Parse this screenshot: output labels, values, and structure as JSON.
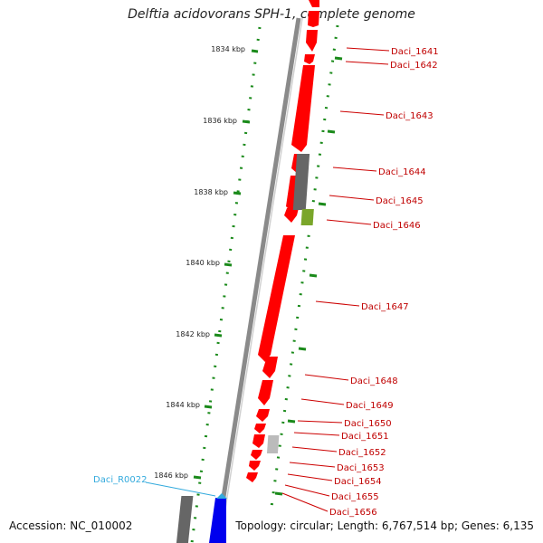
{
  "title": "Delftia acidovorans SPH-1, complete genome",
  "footer": {
    "accession": "Accession: NC_010002",
    "topology": "Topology: circular; Length: 6,767,514 bp; Genes: 6,135"
  },
  "colors": {
    "gene": "#ff0000",
    "gene_label": "#c00000",
    "rna_label": "#33aadd",
    "rna_gene": "#0000ee",
    "backbone": "#8a8a8a",
    "scale_dots": "#1a8a1a",
    "feature_dark": "#666666",
    "feature_green": "#7aa62a",
    "feature_light": "#bbbbbb",
    "leader": "#cc0000"
  },
  "scale_labels": [
    "1834 kbp",
    "1836 kbp",
    "1838 kbp",
    "1840 kbp",
    "1842 kbp",
    "1844 kbp",
    "1846 kbp"
  ],
  "gene_labels": [
    "Daci_1641",
    "Daci_1642",
    "Daci_1643",
    "Daci_1644",
    "Daci_1645",
    "Daci_1646",
    "Daci_1647",
    "Daci_1648",
    "Daci_1649",
    "Daci_1650",
    "Daci_1651",
    "Daci_1652",
    "Daci_1653",
    "Daci_1654",
    "Daci_1655",
    "Daci_1656"
  ],
  "rna_label": "Daci_R0022"
}
